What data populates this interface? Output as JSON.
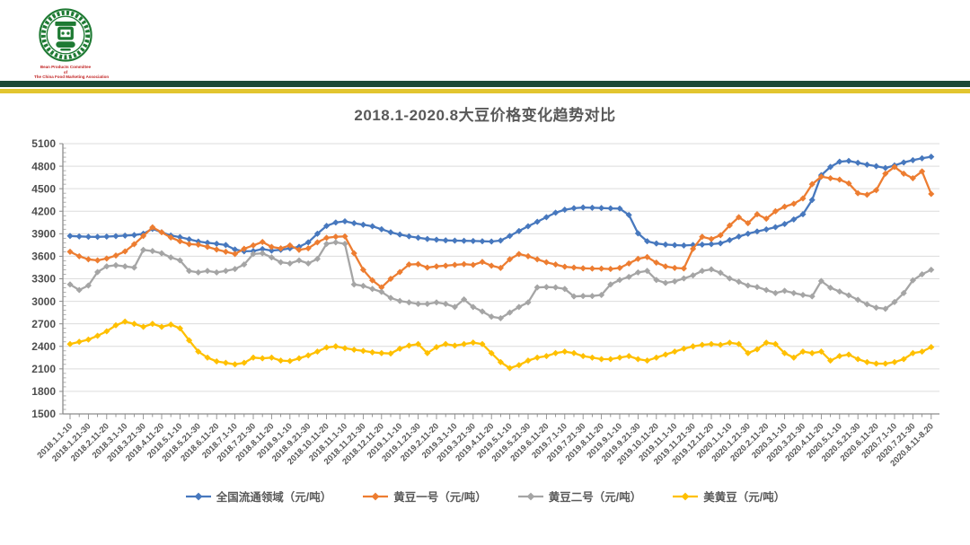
{
  "header": {
    "logo": {
      "ring_color": "#1e7a33",
      "text_color": "#c02020",
      "text_lines": [
        "Bean Products Committee",
        "of",
        "The China Food Marketing Association"
      ]
    },
    "stripes": {
      "dark_green": "#1c4836",
      "gold": "#e2c52f"
    }
  },
  "chart_data": {
    "type": "line",
    "title": "2018.1-2020.8大豆价格变化趋势对比",
    "xlabel": "",
    "ylabel": "",
    "ylim": [
      1500,
      5100
    ],
    "ytick_step": 300,
    "yticks": [
      1500,
      1800,
      2100,
      2400,
      2700,
      3000,
      3300,
      3600,
      3900,
      4200,
      4500,
      4800,
      5100
    ],
    "grid": true,
    "legend_position": "bottom",
    "marker": "diamond",
    "label_every": 2,
    "x_labels": [
      "2018.1.1-10",
      "2018.1.21-30",
      "2018.2.11-20",
      "2018.3.1-10",
      "2018.3.21-30",
      "2018.4.11-20",
      "2018.5.1-10",
      "2018.5.21-30",
      "2018.6.11-20",
      "2018.7.1-10",
      "2018.7.21-30",
      "2018.8.11-20",
      "2018.9.1-10",
      "2018.9.21-30",
      "2018.10.11-20",
      "2018.11.1-10",
      "2018.11.21-30",
      "2018.12.11-20",
      "2019.1.1-10",
      "2019.1.21-30",
      "2019.2.11-20",
      "2019.3.1-10",
      "2019.3.21-30",
      "2019.4.11-20",
      "2019.5.1-10",
      "2019.5.21-30",
      "2019.6.11-20",
      "2019.7.1-10",
      "2019.7.21-30",
      "2019.8.11-20",
      "2019.9.1-10",
      "2019.9.21-30",
      "2019.10.11-20",
      "2019.11.1-10",
      "2019.11.21-30",
      "2019.12.11-20",
      "2020.1.1-10",
      "2020.1.21-30",
      "2020.2.11-20",
      "2020.3.1-10",
      "2020.3.21-30",
      "2020.4.11-20",
      "2020.5.1-10",
      "2020.5.21-30",
      "2020.6.11-20",
      "2020.7.1-10",
      "2020.7.21-30",
      "2020.8.11-8.20"
    ],
    "series": [
      {
        "key": "national-circulation",
        "name": "全国流通领域（元/吨）",
        "color": "#4778BE",
        "values": [
          3870,
          3865,
          3860,
          3858,
          3862,
          3868,
          3875,
          3882,
          3900,
          3965,
          3920,
          3876,
          3855,
          3826,
          3796,
          3780,
          3766,
          3750,
          3690,
          3666,
          3670,
          3696,
          3675,
          3686,
          3705,
          3726,
          3786,
          3900,
          4005,
          4050,
          4066,
          4040,
          4020,
          4000,
          3960,
          3920,
          3890,
          3866,
          3846,
          3830,
          3820,
          3812,
          3808,
          3806,
          3804,
          3800,
          3796,
          3810,
          3870,
          3936,
          4000,
          4060,
          4120,
          4180,
          4220,
          4240,
          4250,
          4246,
          4242,
          4238,
          4235,
          4150,
          3905,
          3800,
          3770,
          3756,
          3748,
          3744,
          3750,
          3756,
          3762,
          3772,
          3815,
          3862,
          3900,
          3930,
          3958,
          3988,
          4030,
          4090,
          4160,
          4350,
          4680,
          4790,
          4860,
          4870,
          4845,
          4820,
          4800,
          4776,
          4810,
          4850,
          4880,
          4905,
          4925
        ]
      },
      {
        "key": "soybean-no1",
        "name": "黄豆一号（元/吨）",
        "color": "#ED7D31",
        "values": [
          3660,
          3600,
          3560,
          3545,
          3570,
          3610,
          3665,
          3760,
          3870,
          3985,
          3920,
          3850,
          3800,
          3762,
          3755,
          3725,
          3690,
          3660,
          3630,
          3700,
          3745,
          3790,
          3725,
          3705,
          3745,
          3685,
          3705,
          3785,
          3845,
          3860,
          3865,
          3640,
          3420,
          3280,
          3185,
          3300,
          3390,
          3490,
          3495,
          3450,
          3465,
          3475,
          3485,
          3495,
          3485,
          3525,
          3475,
          3445,
          3560,
          3630,
          3600,
          3560,
          3520,
          3490,
          3460,
          3450,
          3440,
          3436,
          3435,
          3430,
          3445,
          3505,
          3565,
          3590,
          3515,
          3465,
          3445,
          3438,
          3700,
          3860,
          3830,
          3880,
          4010,
          4120,
          4040,
          4160,
          4100,
          4200,
          4260,
          4300,
          4370,
          4560,
          4660,
          4640,
          4620,
          4570,
          4440,
          4420,
          4480,
          4700,
          4790,
          4700,
          4640,
          4730,
          4430
        ]
      },
      {
        "key": "soybean-no2",
        "name": "黄豆二号（元/吨）",
        "color": "#A5A5A5",
        "values": [
          3225,
          3150,
          3210,
          3390,
          3465,
          3480,
          3465,
          3450,
          3685,
          3670,
          3640,
          3585,
          3545,
          3405,
          3385,
          3405,
          3385,
          3405,
          3430,
          3490,
          3630,
          3640,
          3585,
          3520,
          3505,
          3545,
          3505,
          3565,
          3765,
          3785,
          3765,
          3225,
          3205,
          3165,
          3125,
          3045,
          3005,
          2985,
          2965,
          2965,
          2985,
          2965,
          2925,
          3025,
          2925,
          2865,
          2795,
          2775,
          2850,
          2925,
          2985,
          3185,
          3190,
          3185,
          3165,
          3065,
          3070,
          3070,
          3085,
          3225,
          3285,
          3325,
          3385,
          3405,
          3285,
          3245,
          3265,
          3305,
          3345,
          3405,
          3425,
          3380,
          3305,
          3260,
          3210,
          3190,
          3150,
          3110,
          3140,
          3110,
          3085,
          3065,
          3270,
          3180,
          3130,
          3080,
          3020,
          2960,
          2915,
          2900,
          2990,
          3110,
          3280,
          3360,
          3420
        ]
      },
      {
        "key": "us-soybean",
        "name": "美黄豆（元/吨）",
        "color": "#FFC000",
        "values": [
          2430,
          2460,
          2490,
          2540,
          2600,
          2680,
          2730,
          2700,
          2660,
          2700,
          2660,
          2690,
          2640,
          2480,
          2330,
          2250,
          2200,
          2180,
          2160,
          2180,
          2250,
          2240,
          2250,
          2210,
          2205,
          2240,
          2280,
          2330,
          2385,
          2400,
          2375,
          2355,
          2340,
          2320,
          2310,
          2305,
          2370,
          2410,
          2430,
          2310,
          2390,
          2430,
          2410,
          2430,
          2450,
          2430,
          2310,
          2190,
          2110,
          2150,
          2210,
          2250,
          2270,
          2310,
          2330,
          2310,
          2270,
          2250,
          2230,
          2230,
          2250,
          2270,
          2230,
          2210,
          2250,
          2290,
          2330,
          2370,
          2400,
          2420,
          2430,
          2420,
          2448,
          2430,
          2310,
          2360,
          2448,
          2430,
          2310,
          2250,
          2330,
          2310,
          2330,
          2210,
          2270,
          2290,
          2230,
          2190,
          2170,
          2170,
          2190,
          2230,
          2310,
          2330,
          2390
        ]
      }
    ]
  }
}
